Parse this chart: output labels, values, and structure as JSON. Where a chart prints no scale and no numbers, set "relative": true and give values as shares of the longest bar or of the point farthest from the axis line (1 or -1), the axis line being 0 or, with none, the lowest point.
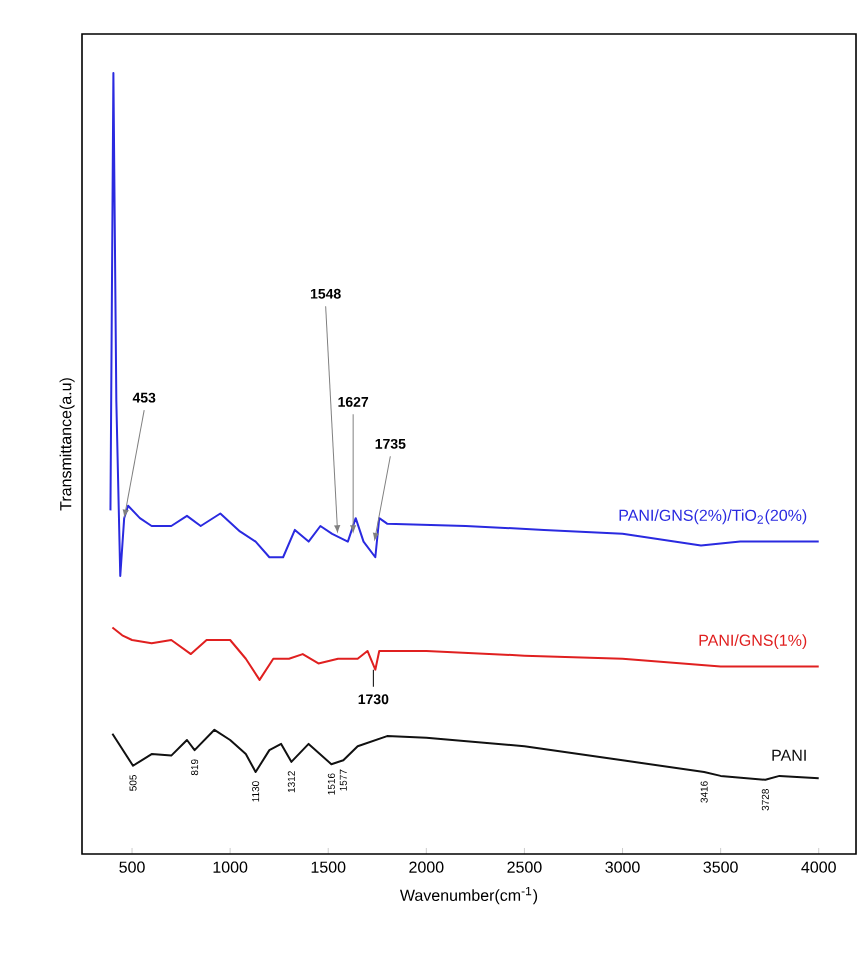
{
  "chart_data": {
    "type": "line",
    "relative": true,
    "xlabel": "Wavenumber(cm$^{-1}$)",
    "ylabel": "Transmittance(a.u)",
    "xlim": [
      245,
      4190
    ],
    "xticks": [
      500,
      1000,
      1500,
      2000,
      2500,
      3000,
      3500,
      4000
    ],
    "tick_labels": "x",
    "grid": false,
    "marker": "none",
    "line_style": "solid",
    "series": [
      {
        "name": "PANI/GNS(2%)/TiO$_{2}$(20%)",
        "color": "#2a2ae0",
        "x": [
          390,
          405,
          420,
          440,
          460,
          480,
          540,
          600,
          700,
          780,
          850,
          950,
          1050,
          1130,
          1200,
          1270,
          1330,
          1400,
          1460,
          1520,
          1600,
          1640,
          1680,
          1740,
          1760,
          1800,
          2200,
          2600,
          3000,
          3400,
          3600,
          3800,
          4000
        ],
        "values": [
          0.44,
          1.0,
          0.58,
          0.356,
          0.43,
          0.446,
          0.43,
          0.42,
          0.42,
          0.433,
          0.42,
          0.436,
          0.413,
          0.4,
          0.38,
          0.38,
          0.415,
          0.4,
          0.42,
          0.41,
          0.4,
          0.43,
          0.4,
          0.38,
          0.43,
          0.423,
          0.42,
          0.415,
          0.41,
          0.395,
          0.4,
          0.4,
          0.4
        ]
      },
      {
        "name": "PANI/GNS(1%)",
        "color": "#e02020",
        "x": [
          400,
          450,
          500,
          600,
          700,
          800,
          880,
          1000,
          1080,
          1150,
          1220,
          1300,
          1370,
          1450,
          1550,
          1650,
          1700,
          1740,
          1760,
          2000,
          2500,
          3000,
          3500,
          4000
        ],
        "values": [
          0.29,
          0.28,
          0.274,
          0.27,
          0.274,
          0.256,
          0.274,
          0.274,
          0.25,
          0.223,
          0.25,
          0.25,
          0.256,
          0.244,
          0.25,
          0.25,
          0.26,
          0.236,
          0.26,
          0.26,
          0.254,
          0.25,
          0.24,
          0.24
        ]
      },
      {
        "name": "PANI",
        "color": "#111111",
        "x": [
          400,
          505,
          600,
          700,
          780,
          819,
          920,
          1000,
          1080,
          1130,
          1200,
          1260,
          1312,
          1400,
          1516,
          1577,
          1650,
          1800,
          2000,
          2500,
          3000,
          3416,
          3500,
          3728,
          3800,
          4000
        ],
        "values": [
          0.154,
          0.113,
          0.128,
          0.126,
          0.146,
          0.133,
          0.159,
          0.146,
          0.128,
          0.105,
          0.133,
          0.141,
          0.118,
          0.141,
          0.115,
          0.12,
          0.138,
          0.151,
          0.149,
          0.138,
          0.12,
          0.105,
          0.1,
          0.095,
          0.1,
          0.097
        ]
      }
    ],
    "annotations": [
      {
        "text": "453",
        "x": 460,
        "y": 0.43
      },
      {
        "text": "1548",
        "x": 1548,
        "y": 0.41
      },
      {
        "text": "1627",
        "x": 1627,
        "y": 0.41
      },
      {
        "text": "1735",
        "x": 1735,
        "y": 0.4
      },
      {
        "text": "1730",
        "x": 1730,
        "y": 0.236
      },
      {
        "text": "505",
        "x": 505,
        "y": 0.113
      },
      {
        "text": "819",
        "x": 819,
        "y": 0.133
      },
      {
        "text": "1130",
        "x": 1130,
        "y": 0.105
      },
      {
        "text": "1312",
        "x": 1312,
        "y": 0.118
      },
      {
        "text": "1516",
        "x": 1516,
        "y": 0.115
      },
      {
        "text": "1577",
        "x": 1577,
        "y": 0.12
      },
      {
        "text": "3416",
        "x": 3416,
        "y": 0.105
      },
      {
        "text": "3728",
        "x": 3728,
        "y": 0.095
      }
    ]
  }
}
